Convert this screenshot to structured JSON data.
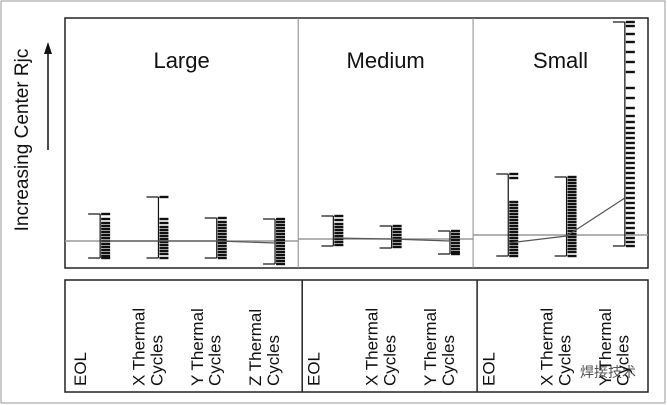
{
  "chart_data": {
    "type": "variability",
    "y_label": "Increasing Center Rjc",
    "watermark": "焊接技术",
    "ylim": [
      0,
      100
    ],
    "groups": [
      {
        "name": "Large",
        "reference": 10.8,
        "categories": [
          {
            "label": "EOL",
            "min": 4,
            "max": 21.6,
            "mean": 10.8,
            "points": [
              21.6,
              19.6,
              18,
              16.8,
              15.6,
              14.4,
              13.2,
              12,
              10.8,
              9.6,
              8.4,
              7.2,
              6,
              4.8,
              4
            ]
          },
          {
            "label": "X Thermal Cycles",
            "min": 4,
            "max": 28.4,
            "mean": 10.8,
            "points": [
              28.4,
              19.6,
              18,
              16.4,
              15.2,
              14,
              12.8,
              11.6,
              10.4,
              9.2,
              8,
              6.8,
              5.6,
              4
            ]
          },
          {
            "label": "Y Thermal Cycles",
            "min": 4,
            "max": 20,
            "mean": 10.8,
            "points": [
              20,
              18.4,
              17.2,
              16,
              14.8,
              13.6,
              12.4,
              11.2,
              10,
              8.8,
              7.6,
              6.4,
              5.2,
              4
            ]
          },
          {
            "label": "Z Thermal Cycles",
            "min": 1.6,
            "max": 19.6,
            "mean": 10,
            "points": [
              19.6,
              18.4,
              17.2,
              16,
              14.8,
              13.6,
              12.4,
              11.2,
              10,
              8.8,
              7.6,
              6.4,
              5.2,
              4,
              2.8,
              1.6
            ]
          }
        ]
      },
      {
        "name": "Medium",
        "reference": 11.6,
        "categories": [
          {
            "label": "EOL",
            "min": 8.8,
            "max": 20.8,
            "mean": 12,
            "points": [
              20.8,
              19.2,
              17.6,
              16.4,
              15.2,
              14,
              12.8,
              11.6,
              10.4,
              9.2
            ]
          },
          {
            "label": "X Thermal Cycles",
            "min": 8,
            "max": 16.8,
            "mean": 11.6,
            "points": [
              16.8,
              15.6,
              14.4,
              13.2,
              12,
              10.8,
              9.6,
              8.4
            ]
          },
          {
            "label": "Y Thermal Cycles",
            "min": 5.6,
            "max": 14.8,
            "mean": 10.8,
            "points": [
              14.8,
              13.6,
              12.4,
              11.2,
              10,
              8.8,
              7.6,
              6.4,
              5.6
            ]
          }
        ]
      },
      {
        "name": "Small",
        "reference": 13.2,
        "categories": [
          {
            "label": "EOL",
            "min": 4.8,
            "max": 37.6,
            "mean": 10,
            "points": [
              37.6,
              36,
              26.4,
              25.2,
              24,
              22.8,
              21.6,
              20.4,
              19.2,
              18,
              16.8,
              15.6,
              14.4,
              13.2,
              12,
              10.8,
              9.6,
              8.4,
              7.2,
              6,
              4.8
            ]
          },
          {
            "label": "X Thermal Cycles",
            "min": 4.8,
            "max": 36.4,
            "mean": 12.8,
            "points": [
              36.4,
              35.2,
              34,
              32.8,
              31.6,
              30.4,
              29.2,
              28,
              26.8,
              25.6,
              24.4,
              23.2,
              22,
              20.8,
              19.6,
              18.4,
              17.2,
              16,
              14.8,
              13.6,
              12.4,
              11.2,
              10,
              8.8,
              7.6,
              6.4,
              4.8
            ]
          },
          {
            "label": "Y Thermal Cycles",
            "min": 8.8,
            "max": 98.4,
            "mean": 28,
            "points": [
              98.4,
              96.8,
              93.6,
              90.4,
              86.4,
              82.4,
              78.4,
              72,
              68,
              64,
              60.8,
              58.4,
              56,
              54,
              52,
              50,
              48,
              46,
              44,
              42,
              40,
              38,
              36,
              34,
              32,
              30,
              28,
              26,
              24,
              22,
              20,
              18,
              16,
              14,
              12,
              10.4,
              8.8
            ]
          }
        ]
      }
    ]
  }
}
